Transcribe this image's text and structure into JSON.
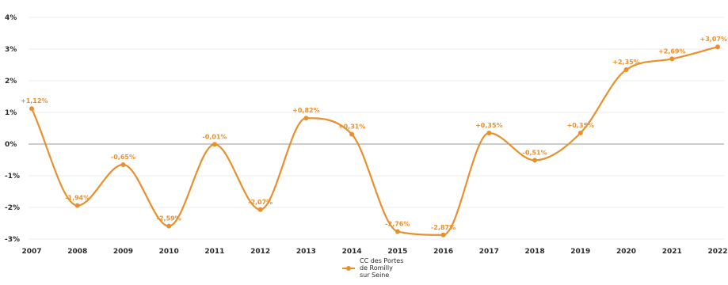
{
  "chart_data": {
    "type": "line",
    "title": "",
    "xlabel": "",
    "ylabel": "",
    "x": [
      "2007",
      "2008",
      "2009",
      "2010",
      "2011",
      "2012",
      "2013",
      "2014",
      "2015",
      "2016",
      "2017",
      "2018",
      "2019",
      "2020",
      "2021",
      "2022"
    ],
    "y_ticks": [
      "4%",
      "3%",
      "2%",
      "1%",
      "0%",
      "-1%",
      "-2%",
      "-3%"
    ],
    "ylim": [
      -3,
      4
    ],
    "grid": true,
    "legend_position": "bottom-center",
    "series": [
      {
        "name": "CC des Portes de Romilly sur Seine",
        "color": "#e8902d",
        "values": [
          1.12,
          -1.94,
          -0.65,
          -2.59,
          -0.01,
          -2.07,
          0.82,
          0.31,
          -2.76,
          -2.87,
          0.35,
          -0.51,
          0.35,
          2.35,
          2.69,
          3.07
        ],
        "labels": [
          "+1,12%",
          "-1,94%",
          "-0,65%",
          "-2,59%",
          "-0,01%",
          "-2,07%",
          "+0,82%",
          "+0,31%",
          "-2,76%",
          "-2,87%",
          "+0,35%",
          "-0,51%",
          "+0,35%",
          "+2,35%",
          "+2,69%",
          "+3,07%"
        ]
      }
    ]
  }
}
